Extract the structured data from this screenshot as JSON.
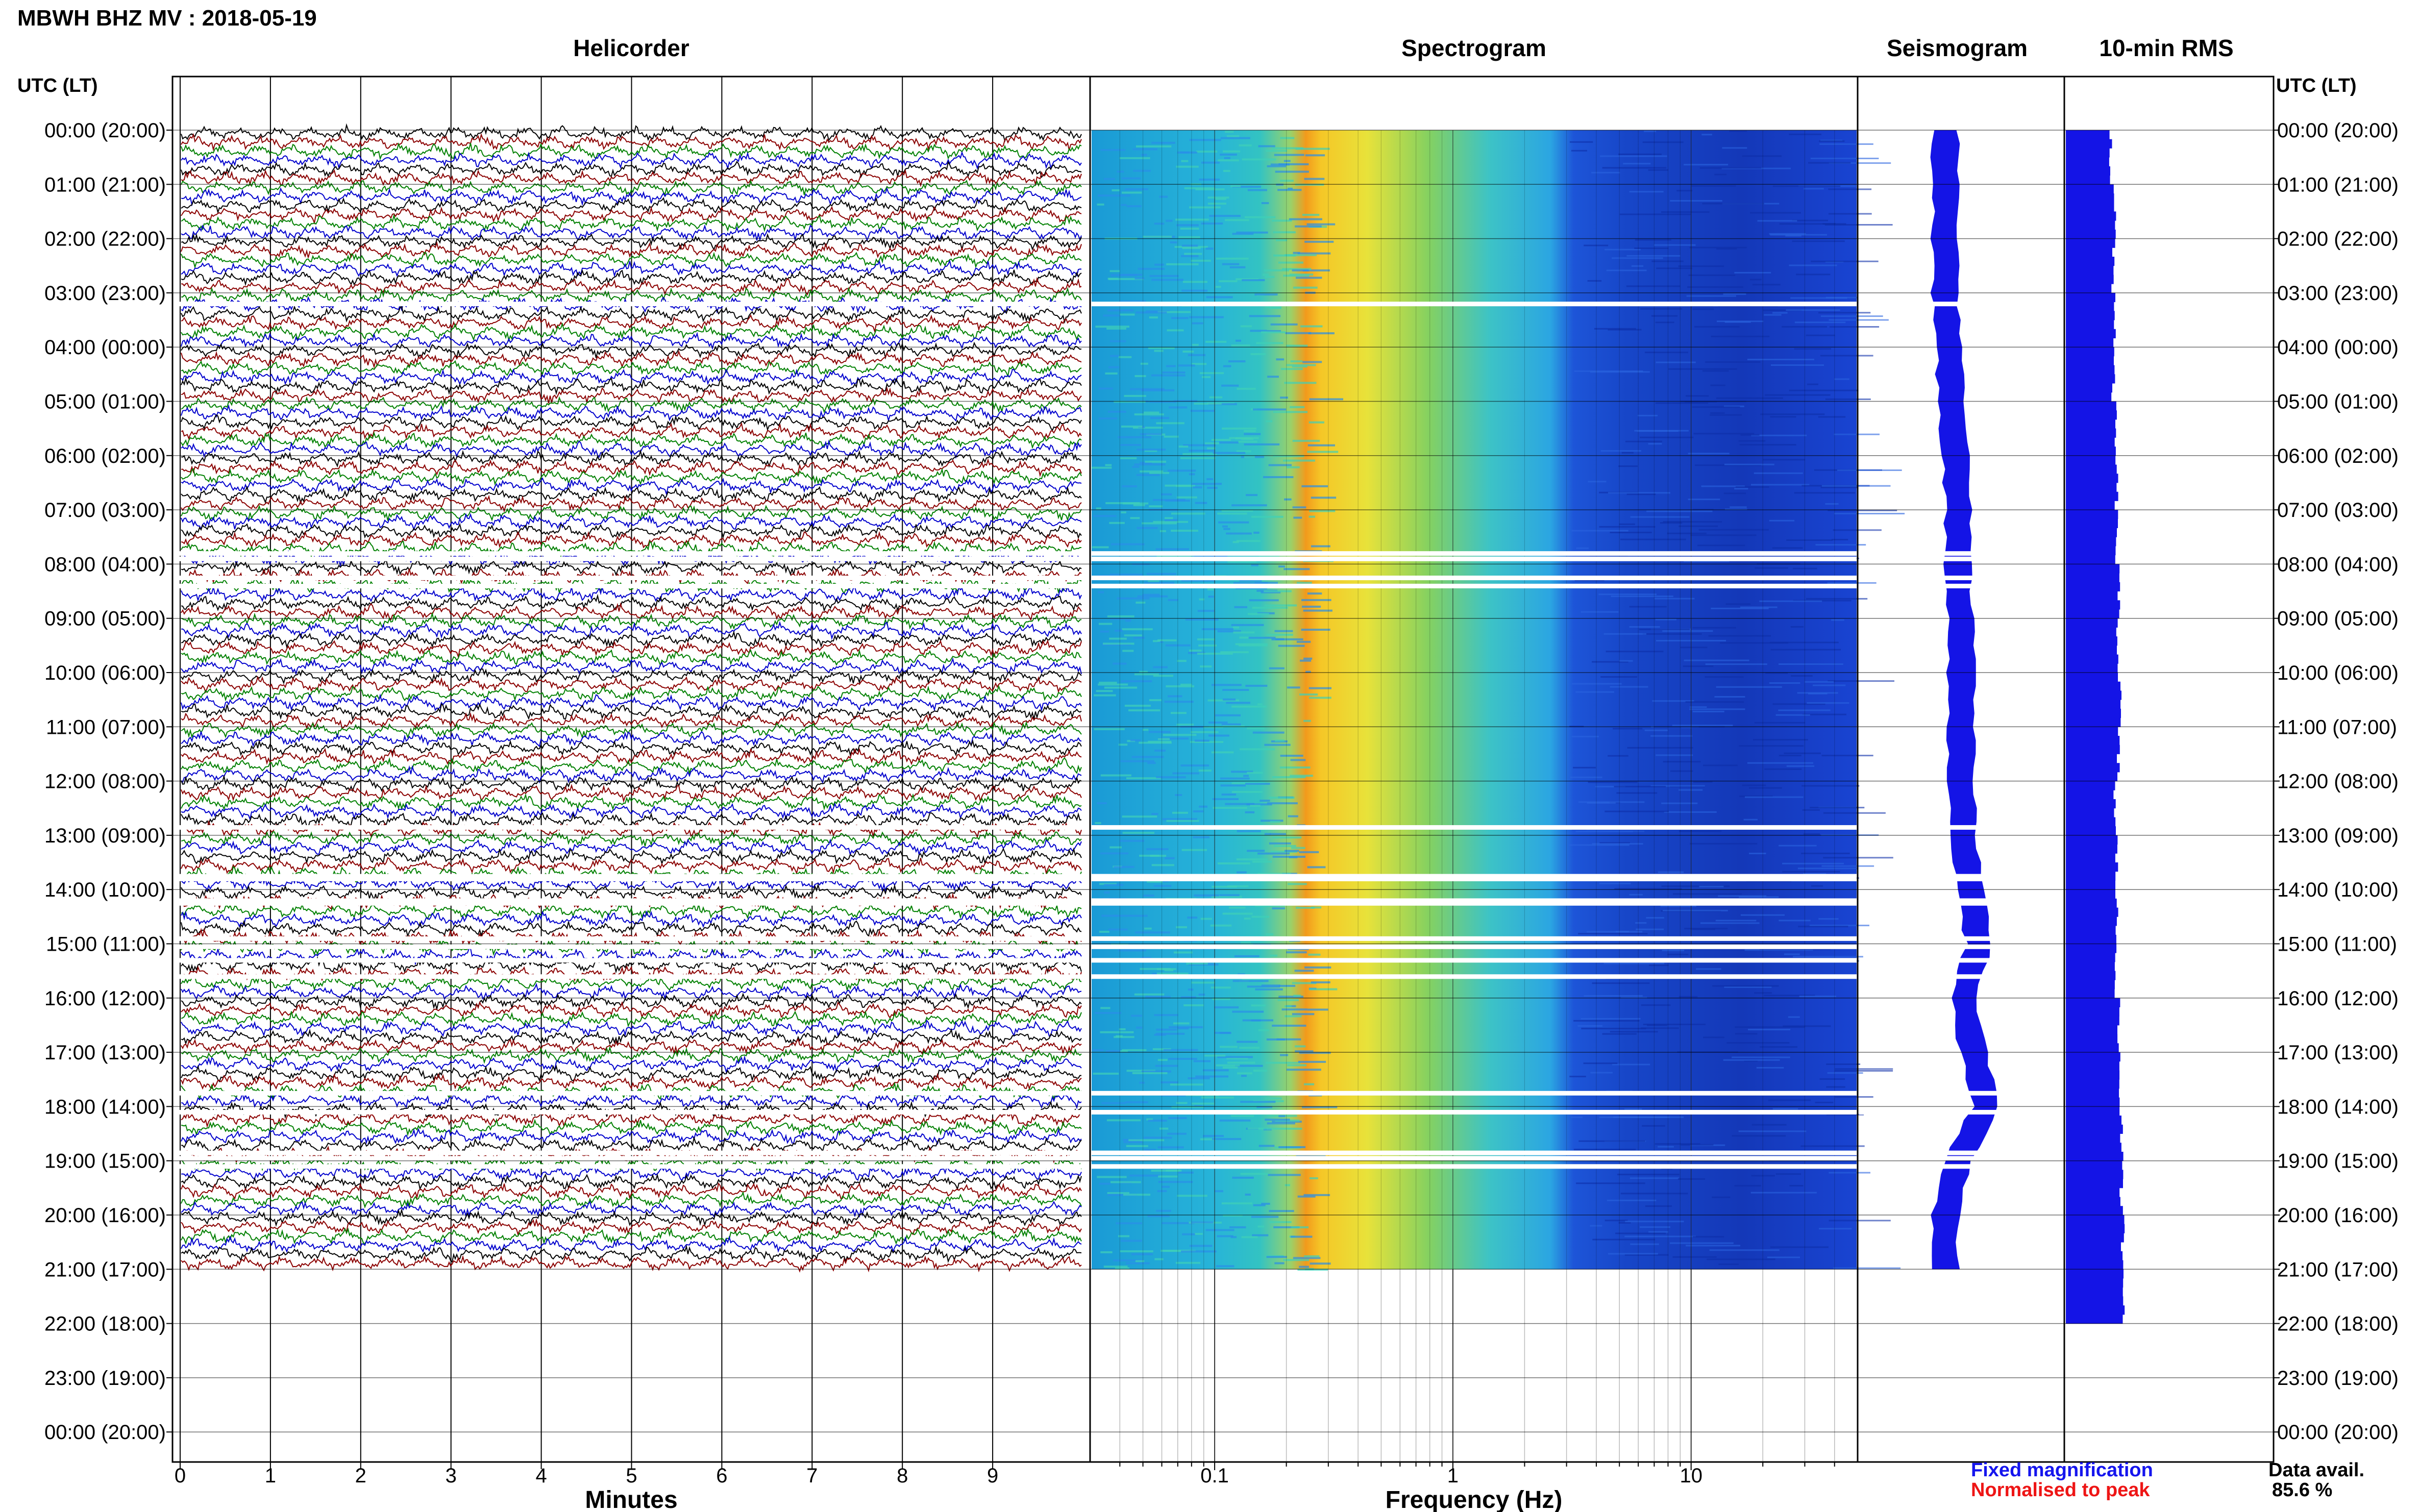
{
  "chart_data": {
    "type": "helicorder",
    "title": "MBWH BHZ MV : 2018-05-19",
    "panels": [
      {
        "name": "helicorder",
        "title": "Helicorder",
        "xlabel": "Minutes",
        "xticks": [
          "0",
          "1",
          "2",
          "3",
          "4",
          "5",
          "6",
          "7",
          "8",
          "9"
        ],
        "xlim": [
          0,
          10
        ],
        "trace_colors": [
          "#000000",
          "#8b0000",
          "#008000",
          "#0000cd"
        ]
      },
      {
        "name": "spectrogram",
        "title": "Spectrogram",
        "xlabel": "Frequency (Hz)",
        "xticks": [
          "0.1",
          "1",
          "10"
        ],
        "xscale": "log",
        "xlim": [
          0.03,
          50
        ]
      },
      {
        "name": "seismogram",
        "title": "Seismogram"
      },
      {
        "name": "rms",
        "title": "10-min RMS"
      }
    ],
    "y_axis_title": "UTC (LT)",
    "y_ticks": [
      "00:00 (20:00)",
      "01:00 (21:00)",
      "02:00 (22:00)",
      "03:00 (23:00)",
      "04:00 (00:00)",
      "05:00 (01:00)",
      "06:00 (02:00)",
      "07:00 (03:00)",
      "08:00 (04:00)",
      "09:00 (05:00)",
      "10:00 (06:00)",
      "11:00 (07:00)",
      "12:00 (08:00)",
      "13:00 (09:00)",
      "14:00 (10:00)",
      "15:00 (11:00)",
      "16:00 (12:00)",
      "17:00 (13:00)",
      "18:00 (14:00)",
      "19:00 (15:00)",
      "20:00 (16:00)",
      "21:00 (17:00)",
      "22:00 (18:00)",
      "23:00 (19:00)",
      "00:00 (20:00)"
    ],
    "data_hours": [
      0,
      21
    ],
    "gaps_hours": [
      3.2,
      7.8,
      7.9,
      8.25,
      8.4,
      12.85,
      13.75,
      13.8,
      14.2,
      14.25,
      14.9,
      15.05,
      15.3,
      15.6,
      17.75,
      18.1,
      18.85,
      18.95,
      19.1
    ],
    "seismogram_offset": [
      0,
      0,
      0,
      0,
      0.1,
      0.2,
      0.3,
      0.4,
      0.4,
      0.5,
      0.5,
      0.5,
      0.5,
      0.6,
      0.8,
      1.1,
      0.6,
      0.9,
      1.3,
      0.4,
      0,
      0
    ],
    "rms_values": [
      0.55,
      0.6,
      0.58,
      0.6,
      0.58,
      0.6,
      0.62,
      0.62,
      0.64,
      0.64,
      0.66,
      0.64,
      0.6,
      0.62,
      0.62,
      0.62,
      0.64,
      0.66,
      0.68,
      0.68,
      0.7,
      0.72
    ],
    "legend": {
      "fixed": "Fixed magnification",
      "normalised": "Normalised to peak"
    },
    "data_availability": {
      "label": "Data avail.",
      "value": "85.6 %"
    }
  }
}
